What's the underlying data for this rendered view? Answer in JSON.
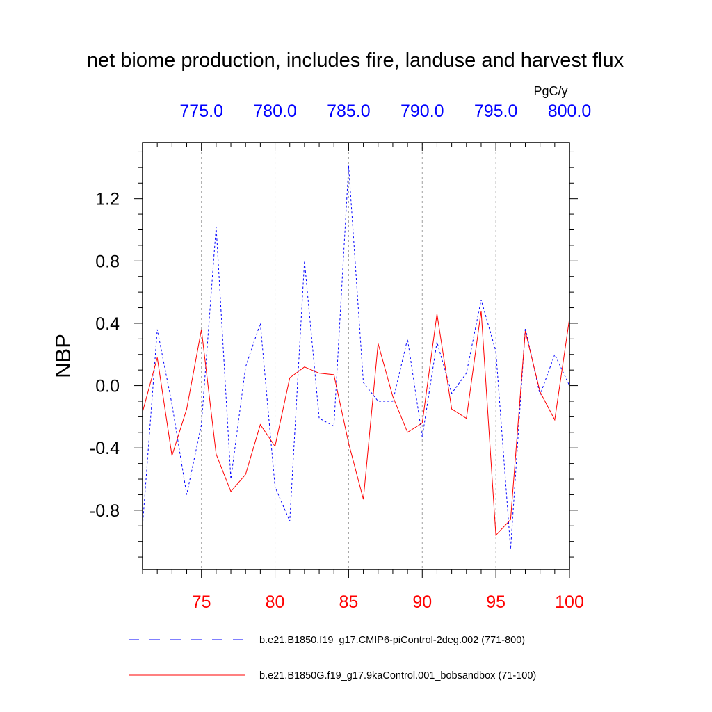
{
  "chart_data": {
    "type": "line",
    "title": "net biome production, includes fire, landuse and harvest flux",
    "units": "PgC/y",
    "ylabel": "NBP",
    "ylim": [
      -1.18,
      1.56
    ],
    "y_ticks": [
      "1.2",
      "0.8",
      "0.4",
      "0.0",
      "-0.4",
      "-0.8"
    ],
    "y_tick_values": [
      1.2,
      0.8,
      0.4,
      0.0,
      -0.4,
      -0.8
    ],
    "x_bottom": {
      "range": [
        71,
        100
      ],
      "ticks": [
        "75",
        "80",
        "85",
        "90",
        "95",
        "100"
      ],
      "tick_values": [
        75,
        80,
        85,
        90,
        95,
        100
      ],
      "color": "#ff0000"
    },
    "x_top": {
      "range": [
        771,
        800
      ],
      "ticks": [
        "775.0",
        "780.0",
        "785.0",
        "790.0",
        "795.0",
        "800.0"
      ],
      "tick_values": [
        775,
        780,
        785,
        790,
        795,
        800
      ],
      "color": "#0000ff"
    },
    "grid": "vertical-dashed",
    "series": [
      {
        "name": "b.e21.B1850.f19_g17.CMIP6-piControl-2deg.002 (771-800)",
        "axis": "top",
        "color": "#0000ff",
        "style": "dashed",
        "x": [
          771,
          772,
          773,
          774,
          775,
          776,
          777,
          778,
          779,
          780,
          781,
          782,
          783,
          784,
          785,
          786,
          787,
          788,
          789,
          790,
          791,
          792,
          793,
          794,
          795,
          796,
          797,
          798,
          799,
          800
        ],
        "values": [
          -0.9,
          0.36,
          -0.12,
          -0.7,
          -0.25,
          1.02,
          -0.6,
          0.12,
          0.4,
          -0.65,
          -0.87,
          0.8,
          -0.21,
          -0.26,
          1.41,
          0.02,
          -0.1,
          -0.1,
          0.3,
          -0.33,
          0.28,
          -0.05,
          0.08,
          0.55,
          0.22,
          -1.05,
          0.37,
          -0.06,
          0.2,
          0.0
        ]
      },
      {
        "name": "b.e21.B1850G.f19_g17.9kaControl.001_bobsandbox (71-100)",
        "axis": "bottom",
        "color": "#ff0000",
        "style": "solid",
        "x": [
          71,
          72,
          73,
          74,
          75,
          76,
          77,
          78,
          79,
          80,
          81,
          82,
          83,
          84,
          85,
          86,
          87,
          88,
          89,
          90,
          91,
          92,
          93,
          94,
          95,
          96,
          97,
          98,
          99,
          100
        ],
        "values": [
          -0.17,
          0.18,
          -0.45,
          -0.15,
          0.36,
          -0.44,
          -0.68,
          -0.57,
          -0.25,
          -0.39,
          0.05,
          0.12,
          0.08,
          0.07,
          -0.37,
          -0.73,
          0.27,
          -0.07,
          -0.3,
          -0.24,
          0.46,
          -0.15,
          -0.21,
          0.48,
          -0.96,
          -0.86,
          0.35,
          -0.04,
          -0.22,
          0.43
        ]
      }
    ],
    "legend": "bottom"
  }
}
